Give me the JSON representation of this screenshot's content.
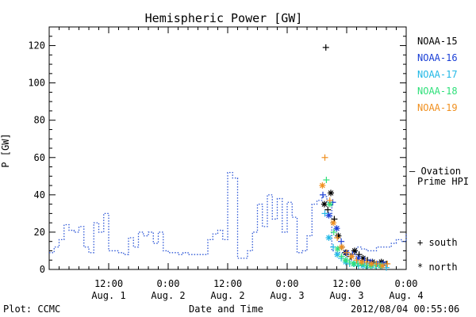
{
  "chart_data": {
    "type": "scatter",
    "title": "Hemispheric Power [GW]",
    "ylabel": "P [GW]",
    "xlabel": "Date and Time",
    "x_unit": "hours",
    "xlim": [
      0,
      72
    ],
    "ylim": [
      0,
      130
    ],
    "y_ticks": [
      0,
      20,
      40,
      60,
      80,
      100,
      120
    ],
    "x_ticks": [
      {
        "x": 12,
        "time": "12:00",
        "date": "Aug. 1"
      },
      {
        "x": 24,
        "time": "0:00",
        "date": "Aug. 2"
      },
      {
        "x": 36,
        "time": "12:00",
        "date": "Aug. 2"
      },
      {
        "x": 48,
        "time": "0:00",
        "date": "Aug. 3"
      },
      {
        "x": 60,
        "time": "12:00",
        "date": "Aug. 3"
      },
      {
        "x": 72,
        "time": "0:00",
        "date": "Aug. 4"
      }
    ],
    "grid": false,
    "legend_position": "right",
    "ovation": {
      "label_line1": "— Ovation",
      "label_line2": "Prime HPI",
      "color": "#2b55d6",
      "step_x": [
        0,
        1,
        2,
        3,
        4,
        5,
        6,
        7,
        8,
        9,
        10,
        11,
        12,
        13,
        14,
        15,
        16,
        17,
        18,
        19,
        20,
        21,
        22,
        23,
        24,
        25,
        26,
        27,
        28,
        29,
        30,
        31,
        32,
        33,
        34,
        35,
        36,
        37,
        38,
        39,
        40,
        41,
        42,
        43,
        44,
        45,
        46,
        47,
        48,
        49,
        50,
        51,
        52,
        53,
        54,
        55,
        56,
        57,
        58,
        59,
        60,
        61,
        62,
        63,
        64,
        65,
        66,
        67,
        68,
        69,
        70,
        71,
        72
      ],
      "step_y": [
        9,
        12,
        16,
        24,
        21,
        20,
        23,
        12,
        9,
        25,
        20,
        30,
        10,
        10,
        9,
        8,
        17,
        12,
        20,
        18,
        20,
        14,
        20,
        10,
        9,
        9,
        8,
        9,
        8,
        8,
        8,
        8,
        16,
        19,
        21,
        16,
        52,
        49,
        6,
        6,
        10,
        20,
        35,
        23,
        40,
        27,
        38,
        20,
        36,
        28,
        9,
        10,
        18,
        35,
        37,
        39,
        36,
        10,
        9,
        9,
        5,
        9,
        12,
        11,
        10,
        10,
        12,
        12,
        12,
        14,
        16,
        15,
        19
      ]
    },
    "series": [
      {
        "name": "NOAA-15",
        "color": "#000000",
        "points": [
          [
            55.8,
            119
          ],
          [
            55.5,
            35
          ],
          [
            56.2,
            32
          ],
          [
            56.8,
            41
          ],
          [
            57.5,
            27
          ],
          [
            58.3,
            18
          ],
          [
            59.0,
            12
          ],
          [
            59.8,
            9
          ],
          [
            60.8,
            7
          ],
          [
            61.6,
            10
          ],
          [
            62.5,
            8
          ],
          [
            63.3,
            6
          ],
          [
            64.2,
            5
          ],
          [
            65.2,
            4
          ],
          [
            66.0,
            3
          ],
          [
            67.0,
            4
          ],
          [
            68.0,
            3
          ]
        ]
      },
      {
        "name": "NOAA-16",
        "color": "#1a3fd6",
        "points": [
          [
            55.2,
            40
          ],
          [
            56.4,
            29
          ],
          [
            57.2,
            36
          ],
          [
            58.0,
            22
          ],
          [
            58.9,
            15
          ],
          [
            60.0,
            9
          ],
          [
            61.2,
            8
          ],
          [
            62.3,
            6
          ],
          [
            63.6,
            5
          ],
          [
            64.8,
            4
          ],
          [
            66.2,
            3
          ],
          [
            67.4,
            3
          ]
        ]
      },
      {
        "name": "NOAA-17",
        "color": "#22b8e6",
        "points": [
          [
            55.6,
            30
          ],
          [
            56.4,
            17
          ],
          [
            57.3,
            12
          ],
          [
            58.1,
            8
          ],
          [
            58.9,
            6
          ],
          [
            59.8,
            4
          ],
          [
            60.6,
            3
          ],
          [
            61.5,
            3
          ],
          [
            62.4,
            2
          ],
          [
            63.3,
            2
          ],
          [
            64.2,
            2
          ],
          [
            65.1,
            2
          ],
          [
            66.0,
            2
          ],
          [
            67.0,
            2
          ],
          [
            68.0,
            1
          ]
        ]
      },
      {
        "name": "NOAA-18",
        "color": "#2fe07a",
        "points": [
          [
            55.9,
            48
          ],
          [
            56.6,
            35
          ],
          [
            57.4,
            20
          ],
          [
            58.2,
            11
          ],
          [
            59.0,
            7
          ],
          [
            59.8,
            5
          ],
          [
            60.6,
            4
          ],
          [
            61.4,
            3
          ],
          [
            62.2,
            3
          ],
          [
            63.0,
            3
          ],
          [
            63.9,
            2
          ],
          [
            64.8,
            2
          ],
          [
            65.8,
            2
          ],
          [
            66.8,
            2
          ]
        ]
      },
      {
        "name": "NOAA-19",
        "color": "#f09020",
        "points": [
          [
            55.6,
            60
          ],
          [
            55.1,
            45
          ],
          [
            56.6,
            37
          ],
          [
            57.3,
            25
          ],
          [
            58.1,
            17
          ],
          [
            59.0,
            12
          ],
          [
            60.0,
            9
          ],
          [
            61.0,
            7
          ],
          [
            62.0,
            5
          ],
          [
            63.0,
            4
          ],
          [
            64.0,
            4
          ],
          [
            65.0,
            3
          ],
          [
            66.0,
            3
          ],
          [
            67.2,
            2
          ],
          [
            68.2,
            3
          ]
        ]
      }
    ],
    "symbol_key": [
      {
        "symbol": "+",
        "label": "south"
      },
      {
        "symbol": "*",
        "label": "north"
      }
    ]
  },
  "footer": {
    "left": "Plot: CCMC",
    "center": "Date and Time",
    "right": "2012/08/04 00:55:06"
  }
}
